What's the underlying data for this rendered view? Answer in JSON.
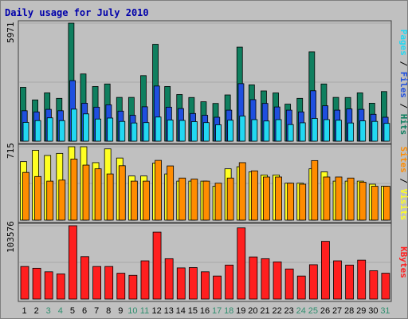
{
  "chart_data": {
    "type": "bar",
    "title": "Daily usage for July 2010",
    "colors": {
      "background": "#c0c0c0",
      "title": "#0000aa",
      "hits": "#0f7f5f",
      "files": "#1f4fdf",
      "pages": "#22d8f2",
      "visits": "#ffff22",
      "sites": "#ff8c00",
      "kbytes": "#ff1f1f",
      "weekend_label": "#2f8f6f",
      "weekday_label": "#000000"
    },
    "categories": [
      "1",
      "2",
      "3",
      "4",
      "5",
      "6",
      "7",
      "8",
      "9",
      "10",
      "11",
      "12",
      "13",
      "14",
      "15",
      "16",
      "17",
      "18",
      "19",
      "20",
      "21",
      "22",
      "23",
      "24",
      "25",
      "26",
      "27",
      "28",
      "29",
      "30",
      "31"
    ],
    "weekend_days": [
      "3",
      "4",
      "10",
      "11",
      "17",
      "18",
      "24",
      "25",
      "31"
    ],
    "panels": [
      {
        "id": "hits",
        "max_label": "5971",
        "ylim": [
          0,
          5971
        ],
        "right_label": [
          {
            "text": "Pages",
            "color": "#22d8f2"
          },
          {
            "text": " / ",
            "color": "#000000"
          },
          {
            "text": "Files",
            "color": "#1f4fdf"
          },
          {
            "text": " / ",
            "color": "#000000"
          },
          {
            "text": "Hits",
            "color": "#0f7f5f"
          }
        ],
        "series": [
          {
            "name": "Hits",
            "color": "#0f7f5f",
            "values": [
              2725,
              2087,
              2444,
              2166,
              5971,
              3400,
              2765,
              2893,
              2214,
              2214,
              3316,
              4901,
              2766,
              2360,
              2209,
              1994,
              1908,
              2339,
              4758,
              2850,
              2542,
              2440,
              1874,
              2166,
              4521,
              2893,
              2214,
              2209,
              2444,
              1920,
              2510
            ]
          },
          {
            "name": "Files",
            "color": "#1f4fdf",
            "values": [
              1540,
              1480,
              1610,
              1540,
              3062,
              1920,
              1720,
              1840,
              1520,
              1310,
              1740,
              2790,
              1720,
              1650,
              1400,
              1310,
              1210,
              1570,
              2910,
              2100,
              1910,
              1730,
              1570,
              1480,
              2550,
              1790,
              1570,
              1630,
              1610,
              1360,
              1210
            ]
          },
          {
            "name": "Pages",
            "color": "#22d8f2",
            "values": [
              950,
              1040,
              1180,
              1040,
              1620,
              1380,
              1120,
              1170,
              1000,
              920,
              940,
              1220,
              1070,
              1050,
              990,
              940,
              830,
              1060,
              1270,
              1090,
              1020,
              1090,
              840,
              930,
              1150,
              1090,
              1060,
              920,
              1030,
              1000,
              900
            ]
          }
        ]
      },
      {
        "id": "visits",
        "max_label": "715",
        "ylim": [
          0,
          715
        ],
        "right_label": [
          {
            "text": "Sites",
            "color": "#ff8c00"
          },
          {
            "text": " / ",
            "color": "#000000"
          },
          {
            "text": "Visits",
            "color": "#ffff22"
          }
        ],
        "series": [
          {
            "name": "Visits",
            "color": "#ffff22",
            "values": [
              570,
              680,
              630,
              650,
              715,
              715,
              560,
              694,
              605,
              430,
              430,
              556,
              450,
              380,
              380,
              380,
              330,
              500,
              520,
              470,
              440,
              440,
              360,
              360,
              500,
              470,
              380,
              380,
              380,
              350,
              330
            ]
          },
          {
            "name": "Sites",
            "color": "#ff8c00",
            "values": [
              465,
              425,
              380,
              390,
              595,
              536,
              500,
              450,
              530,
              380,
              380,
              582,
              528,
              410,
              400,
              380,
              360,
              410,
              560,
              480,
              420,
              420,
              360,
              350,
              580,
              420,
              420,
              410,
              370,
              330,
              330
            ]
          }
        ]
      },
      {
        "id": "kbytes",
        "max_label": "103576",
        "ylim": [
          0,
          103576
        ],
        "right_label": [
          {
            "text": "KBytes",
            "color": "#ff1f1f"
          }
        ],
        "series": [
          {
            "name": "KBytes",
            "color": "#ff1f1f",
            "values": [
              46000,
              43500,
              38500,
              35500,
              103576,
              59900,
              46000,
              46000,
              36500,
              33500,
              54000,
              94500,
              57000,
              44000,
              44500,
              38500,
              32500,
              48000,
              100500,
              59500,
              57000,
              52500,
              42500,
              32500,
              48500,
              81500,
              54000,
              48000,
              55000,
              40000,
              36500
            ]
          }
        ]
      }
    ]
  }
}
